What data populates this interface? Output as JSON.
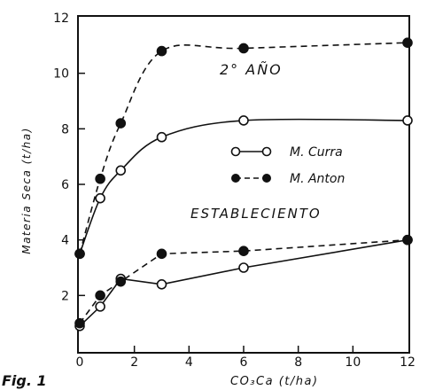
{
  "chart_data": {
    "type": "line",
    "title": "",
    "xlabel": "CO₃Ca  (t/ha)",
    "ylabel": "Materia Seca (t/ha)",
    "xlim": [
      0,
      12
    ],
    "ylim": [
      0,
      12
    ],
    "xticks": [
      "0",
      "2",
      "4",
      "6",
      "8",
      "10",
      "12"
    ],
    "yticks": [
      "2",
      "4",
      "6",
      "8",
      "10",
      "12"
    ],
    "grid": false,
    "legend_position": "center-right",
    "annotations": [
      "2° AÑO",
      "ESTABLECIENTO"
    ],
    "figure_caption": "Fig. 1",
    "series": [
      {
        "name": "M. Curra",
        "marker": "open-circle",
        "line": "solid",
        "group": "2° AÑO",
        "x": [
          0,
          0.75,
          1.5,
          3,
          6,
          12
        ],
        "y": [
          3.5,
          5.5,
          6.5,
          7.7,
          8.3,
          8.3
        ]
      },
      {
        "name": "M. Anton",
        "marker": "filled-circle",
        "line": "dashed",
        "group": "2° AÑO",
        "x": [
          0,
          0.75,
          1.5,
          3,
          6,
          12
        ],
        "y": [
          3.5,
          6.2,
          8.2,
          10.8,
          10.9,
          11.1
        ]
      },
      {
        "name": "M. Curra",
        "marker": "open-circle",
        "line": "solid",
        "group": "ESTABLECIENTO",
        "x": [
          0,
          0.75,
          1.5,
          3,
          6,
          12
        ],
        "y": [
          0.9,
          1.6,
          2.6,
          2.4,
          3.0,
          4.0
        ]
      },
      {
        "name": "M. Anton",
        "marker": "filled-circle",
        "line": "dashed",
        "group": "ESTABLECIENTO",
        "x": [
          0,
          0.75,
          1.5,
          3,
          6,
          12
        ],
        "y": [
          1.0,
          2.0,
          2.5,
          3.5,
          3.6,
          4.0
        ]
      }
    ]
  }
}
